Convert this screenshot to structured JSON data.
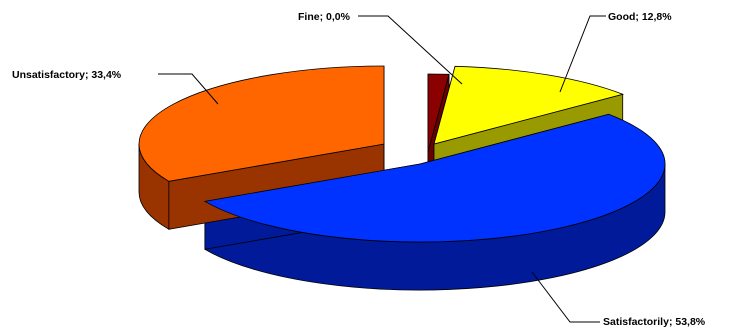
{
  "chart_data": {
    "type": "pie",
    "style": "3d-exploded",
    "slices": [
      {
        "label": "Fine; 0,0%",
        "name": "Fine",
        "value": 0.0,
        "top_color": "#8B0000",
        "side_color": "#6A0000"
      },
      {
        "label": "Good; 12,8%",
        "name": "Good",
        "value": 12.8,
        "top_color": "#FFFF00",
        "side_color": "#999900"
      },
      {
        "label": "Satisfactorily; 53,8%",
        "name": "Satisfactorily",
        "value": 53.8,
        "top_color": "#0033FF",
        "side_color": "#001A99"
      },
      {
        "label": "Unsatisfactory; 33,4%",
        "name": "Unsatisfactory",
        "value": 33.4,
        "top_color": "#FF6600",
        "side_color": "#993300"
      }
    ],
    "title": "",
    "legend": "none"
  }
}
